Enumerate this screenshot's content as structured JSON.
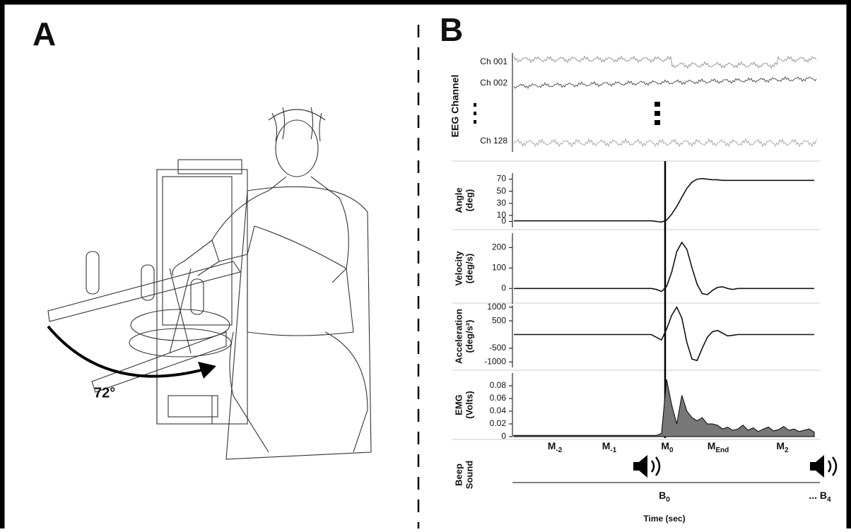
{
  "panel_a": {
    "label": "A",
    "angle_label": "72°"
  },
  "panel_b": {
    "label": "B",
    "eeg": {
      "ylabel": "EEG Channel",
      "channels": [
        "Ch 001",
        "Ch 002",
        "Ch 128"
      ]
    },
    "subplots": [
      {
        "type": "line",
        "color": "#111111",
        "ylabel": [
          "Angle",
          "(deg)"
        ],
        "ylim": [
          -10,
          80
        ],
        "yticks": [
          0,
          10,
          30,
          50,
          70
        ],
        "values": [
          1,
          1,
          1,
          1,
          1,
          1,
          1,
          1,
          1,
          1,
          1,
          1,
          1,
          1,
          1,
          1,
          1,
          1,
          1,
          1,
          1,
          1,
          1,
          1,
          1,
          1,
          1,
          1,
          0,
          -1,
          2,
          12,
          25,
          40,
          55,
          65,
          70,
          71,
          70,
          69,
          69,
          68,
          68,
          68,
          68,
          68,
          68,
          68,
          68,
          68,
          68,
          68,
          68,
          68,
          68,
          68,
          68,
          68,
          68,
          68
        ]
      },
      {
        "type": "line",
        "color": "#111111",
        "ylabel": [
          "Velocity",
          "(deg/s)"
        ],
        "ylim": [
          -75,
          270
        ],
        "yticks": [
          0,
          100,
          200
        ],
        "values": [
          0,
          0,
          0,
          0,
          0,
          0,
          0,
          0,
          0,
          0,
          0,
          0,
          0,
          0,
          0,
          0,
          0,
          0,
          0,
          0,
          0,
          0,
          0,
          0,
          0,
          0,
          0,
          0,
          -5,
          -15,
          10,
          80,
          180,
          225,
          190,
          100,
          20,
          -25,
          -30,
          -10,
          5,
          8,
          0,
          -5,
          0,
          0,
          0,
          0,
          0,
          0,
          0,
          0,
          0,
          0,
          0,
          0,
          0,
          0,
          0,
          0
        ]
      },
      {
        "type": "line",
        "color": "#111111",
        "ylabel": [
          "Acceleration",
          "(deg/s²)"
        ],
        "ylim": [
          -1200,
          1070
        ],
        "yticks": [
          -1000,
          -500,
          500,
          1000
        ],
        "values": [
          0,
          0,
          0,
          0,
          0,
          0,
          0,
          0,
          0,
          0,
          0,
          0,
          0,
          0,
          0,
          0,
          0,
          0,
          0,
          0,
          0,
          0,
          0,
          0,
          0,
          0,
          0,
          0,
          -100,
          -200,
          200,
          700,
          1000,
          600,
          -300,
          -900,
          -950,
          -500,
          -100,
          100,
          150,
          50,
          -50,
          -30,
          0,
          0,
          0,
          0,
          0,
          0,
          0,
          0,
          0,
          0,
          0,
          0,
          0,
          0,
          0,
          0
        ]
      },
      {
        "type": "area",
        "color": "#777777",
        "ylabel": [
          "EMG",
          "(Volts)"
        ],
        "ylim": [
          0,
          0.1
        ],
        "yticks": [
          0,
          0.02,
          0.04,
          0.06,
          0.08
        ],
        "values": [
          0.002,
          0.002,
          0.002,
          0.002,
          0.002,
          0.002,
          0.002,
          0.002,
          0.002,
          0.002,
          0.002,
          0.002,
          0.002,
          0.002,
          0.002,
          0.002,
          0.002,
          0.002,
          0.002,
          0.002,
          0.002,
          0.002,
          0.002,
          0.002,
          0.002,
          0.002,
          0.002,
          0.002,
          0.002,
          0.005,
          0.09,
          0.05,
          0.02,
          0.065,
          0.04,
          0.03,
          0.025,
          0.03,
          0.02,
          0.02,
          0.018,
          0.012,
          0.015,
          0.01,
          0.012,
          0.018,
          0.01,
          0.014,
          0.008,
          0.012,
          0.015,
          0.009,
          0.011,
          0.016,
          0.01,
          0.012,
          0.008,
          0.01,
          0.012,
          0.007
        ]
      }
    ],
    "events": [
      {
        "base": "M",
        "sub": "-2"
      },
      {
        "base": "M",
        "sub": "-1"
      },
      {
        "base": "M",
        "sub": "0"
      },
      {
        "base": "M",
        "sub": "End"
      },
      {
        "base": "M",
        "sub": "2"
      }
    ],
    "beep": {
      "ylabel": [
        "Beep",
        "Sound"
      ],
      "markers": [
        {
          "base": "B",
          "sub": "0"
        },
        {
          "base": "... B",
          "sub": "4"
        }
      ]
    },
    "xlabel": "Time (sec)"
  }
}
